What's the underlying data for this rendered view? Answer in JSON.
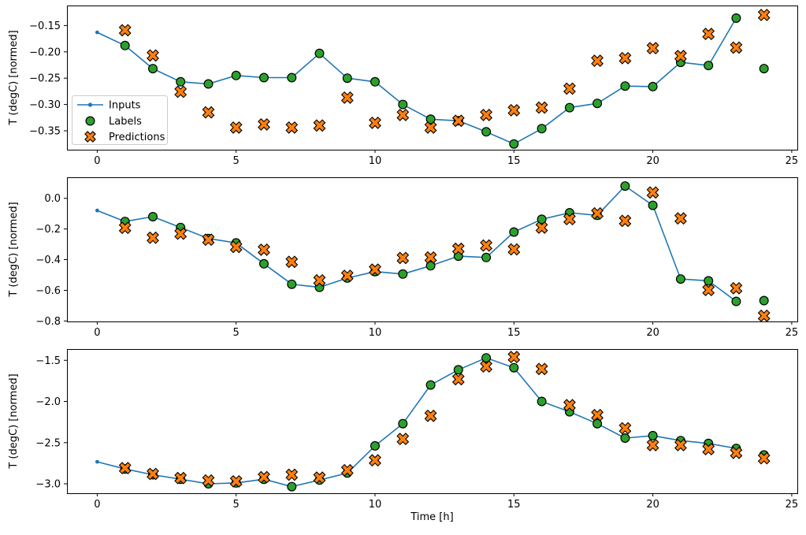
{
  "figure": {
    "background": "#ffffff",
    "legend": {
      "position": "upper-left-inside-top-panel",
      "items": [
        {
          "label": "Inputs",
          "type": "line-with-dot",
          "color": "#1f77b4"
        },
        {
          "label": "Labels",
          "type": "circle",
          "color": "#2ca02c"
        },
        {
          "label": "Predictions",
          "type": "x-marker",
          "color": "#ff7f0e"
        }
      ]
    },
    "marker_edge_color": "#000000",
    "axis_color": "#000000"
  },
  "chart_data": [
    {
      "type": "line",
      "panel": "top",
      "title": "",
      "xlabel": "",
      "ylabel": "T (degC) [normed]",
      "grid": false,
      "xlim": [
        -1.09,
        25.2
      ],
      "ylim": [
        -0.386,
        -0.112
      ],
      "xticks": [
        0,
        5,
        10,
        15,
        20,
        25
      ],
      "xtick_labels": [
        "0",
        "5",
        "10",
        "15",
        "20",
        "25"
      ],
      "yticks": [
        -0.15,
        -0.2,
        -0.25,
        -0.3,
        -0.35
      ],
      "ytick_labels": [
        "−0.15",
        "−0.20",
        "−0.25",
        "−0.30",
        "−0.35"
      ],
      "series": [
        {
          "name": "Inputs",
          "type": "line",
          "color": "#1f77b4",
          "marker": "dot",
          "x": [
            0,
            1,
            2,
            3,
            4,
            5,
            6,
            7,
            8,
            9,
            10,
            11,
            12,
            13,
            14,
            15,
            16,
            17,
            18,
            19,
            20,
            21,
            22,
            23
          ],
          "y": [
            -0.163,
            -0.188,
            -0.232,
            -0.257,
            -0.261,
            -0.245,
            -0.249,
            -0.249,
            -0.203,
            -0.25,
            -0.257,
            -0.3,
            -0.328,
            -0.331,
            -0.352,
            -0.375,
            -0.346,
            -0.306,
            -0.298,
            -0.265,
            -0.266,
            -0.22,
            -0.226,
            -0.136
          ]
        },
        {
          "name": "Labels",
          "type": "scatter",
          "color": "#2ca02c",
          "marker": "circle",
          "x": [
            1,
            2,
            3,
            4,
            5,
            6,
            7,
            8,
            9,
            10,
            11,
            12,
            13,
            14,
            15,
            16,
            17,
            18,
            19,
            20,
            21,
            22,
            23,
            24
          ],
          "y": [
            -0.188,
            -0.232,
            -0.257,
            -0.261,
            -0.245,
            -0.249,
            -0.249,
            -0.203,
            -0.25,
            -0.257,
            -0.3,
            -0.328,
            -0.331,
            -0.352,
            -0.375,
            -0.346,
            -0.306,
            -0.298,
            -0.265,
            -0.266,
            -0.22,
            -0.226,
            -0.136,
            -0.232
          ]
        },
        {
          "name": "Predictions",
          "type": "scatter",
          "color": "#ff7f0e",
          "marker": "x",
          "x": [
            1,
            2,
            3,
            4,
            5,
            6,
            7,
            8,
            9,
            10,
            11,
            12,
            13,
            14,
            15,
            16,
            17,
            18,
            19,
            20,
            21,
            22,
            23,
            24
          ],
          "y": [
            -0.159,
            -0.207,
            -0.276,
            -0.315,
            -0.344,
            -0.338,
            -0.344,
            -0.34,
            -0.287,
            -0.335,
            -0.32,
            -0.344,
            -0.331,
            -0.32,
            -0.311,
            -0.306,
            -0.27,
            -0.217,
            -0.212,
            -0.193,
            -0.208,
            -0.166,
            -0.192,
            -0.13
          ]
        }
      ]
    },
    {
      "type": "line",
      "panel": "middle",
      "title": "",
      "xlabel": "",
      "ylabel": "T (degC) [normed]",
      "grid": false,
      "xlim": [
        -1.09,
        25.2
      ],
      "ylim": [
        -0.803,
        0.137
      ],
      "xticks": [
        0,
        5,
        10,
        15,
        20,
        25
      ],
      "xtick_labels": [
        "0",
        "5",
        "10",
        "15",
        "20",
        "25"
      ],
      "yticks": [
        0.0,
        -0.2,
        -0.4,
        -0.6,
        -0.8
      ],
      "ytick_labels": [
        "0.0",
        "−0.2",
        "−0.4",
        "−0.6",
        "−0.8"
      ],
      "series": [
        {
          "name": "Inputs",
          "type": "line",
          "color": "#1f77b4",
          "marker": "dot",
          "x": [
            0,
            1,
            2,
            3,
            4,
            5,
            6,
            7,
            8,
            9,
            10,
            11,
            12,
            13,
            14,
            15,
            16,
            17,
            18,
            19,
            20,
            21,
            22,
            23
          ],
          "y": [
            -0.08,
            -0.151,
            -0.12,
            -0.19,
            -0.262,
            -0.291,
            -0.427,
            -0.56,
            -0.58,
            -0.52,
            -0.478,
            -0.494,
            -0.44,
            -0.377,
            -0.386,
            -0.22,
            -0.137,
            -0.094,
            -0.111,
            0.08,
            -0.046,
            -0.526,
            -0.538,
            -0.672
          ]
        },
        {
          "name": "Labels",
          "type": "scatter",
          "color": "#2ca02c",
          "marker": "circle",
          "x": [
            1,
            2,
            3,
            4,
            5,
            6,
            7,
            8,
            9,
            10,
            11,
            12,
            13,
            14,
            15,
            16,
            17,
            18,
            19,
            20,
            21,
            22,
            23,
            24
          ],
          "y": [
            -0.151,
            -0.12,
            -0.19,
            -0.262,
            -0.291,
            -0.427,
            -0.56,
            -0.58,
            -0.52,
            -0.478,
            -0.494,
            -0.44,
            -0.377,
            -0.386,
            -0.22,
            -0.137,
            -0.094,
            -0.111,
            0.08,
            -0.046,
            -0.526,
            -0.538,
            -0.672,
            -0.667
          ]
        },
        {
          "name": "Predictions",
          "type": "scatter",
          "color": "#ff7f0e",
          "marker": "x",
          "x": [
            1,
            2,
            3,
            4,
            5,
            6,
            7,
            8,
            9,
            10,
            11,
            12,
            13,
            14,
            15,
            16,
            17,
            18,
            19,
            20,
            21,
            22,
            23,
            24
          ],
          "y": [
            -0.193,
            -0.257,
            -0.231,
            -0.27,
            -0.317,
            -0.335,
            -0.414,
            -0.535,
            -0.505,
            -0.465,
            -0.389,
            -0.386,
            -0.329,
            -0.308,
            -0.333,
            -0.191,
            -0.136,
            -0.098,
            -0.147,
            0.038,
            -0.131,
            -0.598,
            -0.586,
            -0.766
          ]
        }
      ]
    },
    {
      "type": "line",
      "panel": "bottom",
      "title": "",
      "xlabel": "Time [h]",
      "ylabel": "T (degC) [normed]",
      "grid": false,
      "xlim": [
        -1.09,
        25.2
      ],
      "ylim": [
        -3.115,
        -1.363
      ],
      "xticks": [
        0,
        5,
        10,
        15,
        20,
        25
      ],
      "xtick_labels": [
        "0",
        "5",
        "10",
        "15",
        "20",
        "25"
      ],
      "yticks": [
        -1.5,
        -2.0,
        -2.5,
        -3.0
      ],
      "ytick_labels": [
        "−1.5",
        "−2.0",
        "−2.5",
        "−3.0"
      ],
      "series": [
        {
          "name": "Inputs",
          "type": "line",
          "color": "#1f77b4",
          "marker": "dot",
          "x": [
            0,
            1,
            2,
            3,
            4,
            5,
            6,
            7,
            8,
            9,
            10,
            11,
            12,
            13,
            14,
            15,
            16,
            17,
            18,
            19,
            20,
            21,
            22,
            23
          ],
          "y": [
            -2.733,
            -2.82,
            -2.89,
            -2.945,
            -3.0,
            -2.99,
            -2.945,
            -3.035,
            -2.955,
            -2.87,
            -2.54,
            -2.27,
            -1.8,
            -1.615,
            -1.47,
            -1.59,
            -2.0,
            -2.125,
            -2.27,
            -2.445,
            -2.415,
            -2.475,
            -2.51,
            -2.57
          ]
        },
        {
          "name": "Labels",
          "type": "scatter",
          "color": "#2ca02c",
          "marker": "circle",
          "x": [
            1,
            2,
            3,
            4,
            5,
            6,
            7,
            8,
            9,
            10,
            11,
            12,
            13,
            14,
            15,
            16,
            17,
            18,
            19,
            20,
            21,
            22,
            23,
            24
          ],
          "y": [
            -2.82,
            -2.89,
            -2.945,
            -3.0,
            -2.99,
            -2.945,
            -3.035,
            -2.955,
            -2.87,
            -2.54,
            -2.27,
            -1.8,
            -1.615,
            -1.47,
            -1.59,
            -2.0,
            -2.125,
            -2.27,
            -2.445,
            -2.415,
            -2.475,
            -2.51,
            -2.57,
            -2.65
          ]
        },
        {
          "name": "Predictions",
          "type": "scatter",
          "color": "#ff7f0e",
          "marker": "x",
          "x": [
            1,
            2,
            3,
            4,
            5,
            6,
            7,
            8,
            9,
            10,
            11,
            12,
            13,
            14,
            15,
            16,
            17,
            18,
            19,
            20,
            21,
            22,
            23,
            24
          ],
          "y": [
            -2.81,
            -2.88,
            -2.93,
            -2.96,
            -2.97,
            -2.92,
            -2.89,
            -2.925,
            -2.835,
            -2.715,
            -2.455,
            -2.175,
            -1.73,
            -1.575,
            -1.46,
            -1.605,
            -2.045,
            -2.165,
            -2.325,
            -2.53,
            -2.53,
            -2.58,
            -2.625,
            -2.69
          ]
        }
      ]
    }
  ]
}
